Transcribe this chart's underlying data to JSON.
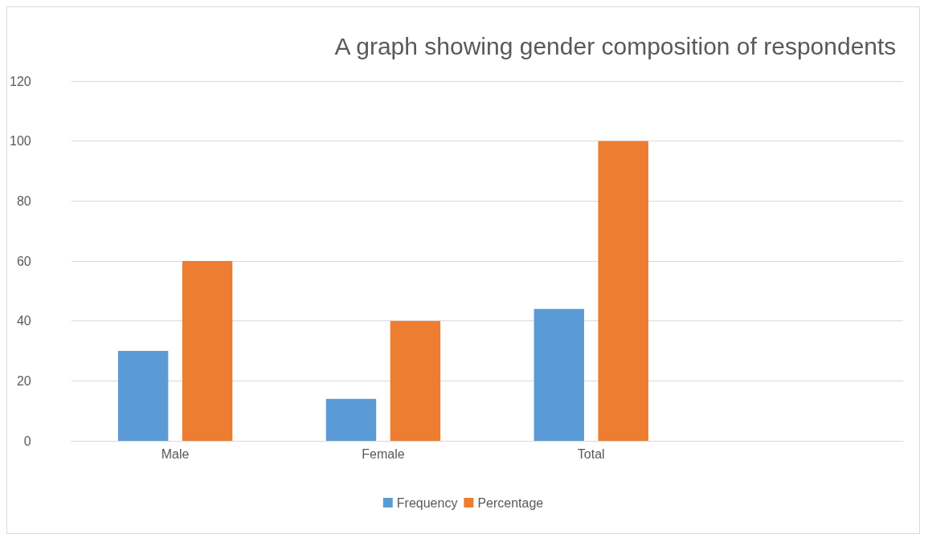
{
  "chart_data": {
    "type": "bar",
    "title": "A graph showing gender composition of respondents",
    "categories": [
      "Male",
      "Female",
      "Total",
      null
    ],
    "series": [
      {
        "name": "Frequency",
        "color": "#5b9bd5",
        "values": [
          30,
          14,
          44,
          null
        ]
      },
      {
        "name": "Percentage",
        "color": "#ed7d31",
        "values": [
          60,
          40,
          100,
          null
        ]
      }
    ],
    "ylim": [
      0,
      120
    ],
    "yticks": [
      0,
      20,
      40,
      60,
      80,
      100,
      120
    ],
    "grid": "y",
    "legend": "bottom"
  }
}
